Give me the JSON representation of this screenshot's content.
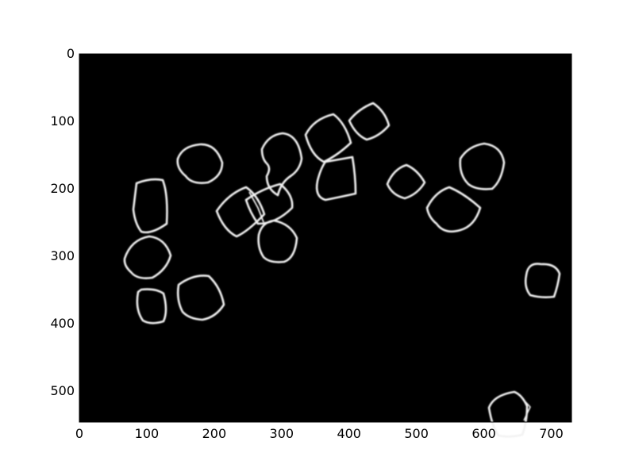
{
  "image": {
    "description_free": true,
    "background_color": "#000000",
    "edge_color": "#ffffff"
  },
  "axes": {
    "x_ticks": [
      "0",
      "100",
      "200",
      "300",
      "400",
      "500",
      "600",
      "700"
    ],
    "y_ticks": [
      "0",
      "100",
      "200",
      "300",
      "400",
      "500"
    ],
    "x_range": [
      0,
      730
    ],
    "y_range": [
      0,
      546
    ]
  }
}
